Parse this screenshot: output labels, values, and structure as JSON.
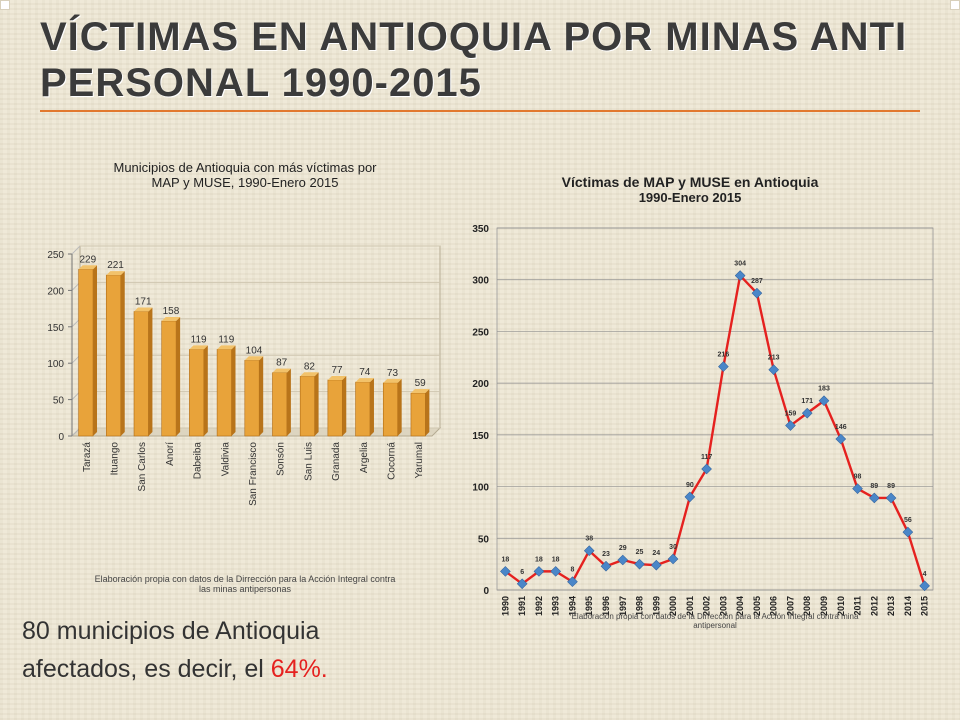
{
  "slide": {
    "title_line1": "VÍCTIMAS EN ANTIOQUIA POR MINAS ANTI",
    "title_line2": "PERSONAL 1990-2015",
    "body_line1": "80 municipios de Antioquia",
    "body_line2_prefix": "afectados, es decir, el",
    "body_line2_highlight": "64%.",
    "accent_color": "#e2782e",
    "highlight_color": "#e5211f"
  },
  "chart_data": [
    {
      "type": "bar",
      "title_line1": "Municipios de Antioquia con más víctimas por",
      "title_line2": "MAP y MUSE, 1990-Enero 2015",
      "categories": [
        "Tarazá",
        "Ituango",
        "San Carlos",
        "Anorí",
        "Dabeiba",
        "Valdivia",
        "San Francisco",
        "Sonsón",
        "San Luis",
        "Granada",
        "Argelia",
        "Cocorná",
        "Yarumal"
      ],
      "values": [
        229,
        221,
        171,
        158,
        119,
        119,
        104,
        87,
        82,
        77,
        74,
        73,
        59
      ],
      "ylim": [
        0,
        250
      ],
      "yticks": [
        0,
        50,
        100,
        150,
        200,
        250
      ],
      "bar_color": "#e8a33a",
      "source_line1": "Elaboración propia con datos de la Dirrección para la Acción Integral contra",
      "source_line2": "las minas antipersonas"
    },
    {
      "type": "line",
      "title_line1": "Víctimas de MAP y MUSE en Antioquia",
      "title_line2": "1990-Enero 2015",
      "x": [
        "1990",
        "1991",
        "1992",
        "1993",
        "1994",
        "1995",
        "1996",
        "1997",
        "1998",
        "1999",
        "2000",
        "2001",
        "2002",
        "2003",
        "2004",
        "2005",
        "2006",
        "2007",
        "2008",
        "2009",
        "2010",
        "2011",
        "2012",
        "2013",
        "2014",
        "2015"
      ],
      "values": [
        18,
        6,
        18,
        18,
        8,
        38,
        23,
        29,
        25,
        24,
        30,
        90,
        117,
        216,
        304,
        287,
        213,
        159,
        171,
        183,
        146,
        98,
        89,
        89,
        56,
        4
      ],
      "ylim": [
        0,
        350
      ],
      "yticks": [
        0,
        50,
        100,
        150,
        200,
        250,
        300,
        350
      ],
      "line_color": "#e5211f",
      "marker_color": "#4a86c8",
      "grid": true,
      "source_line1": "Elaboración propia con datos de la Dirrección para la Acción Integral contra mina",
      "source_line2": "antipersonal"
    }
  ]
}
